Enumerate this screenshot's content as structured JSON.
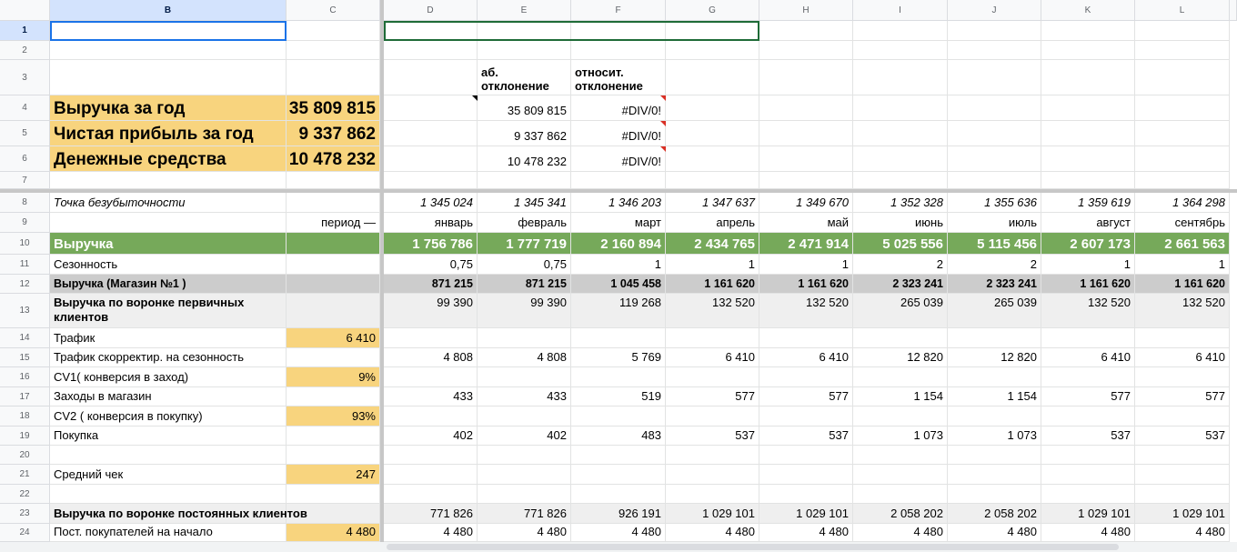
{
  "column_headers": [
    "B",
    "C",
    "D",
    "E",
    "F",
    "G",
    "H",
    "I",
    "J",
    "K",
    "L"
  ],
  "row_numbers": [
    1,
    2,
    3,
    4,
    5,
    6,
    7,
    8,
    9,
    10,
    11,
    12,
    13,
    14,
    15,
    16,
    17,
    18,
    19,
    20,
    21,
    22,
    23,
    24
  ],
  "cells": [
    [
      null,
      null,
      null,
      null,
      null,
      null,
      null,
      null,
      null,
      null,
      null
    ],
    [
      null,
      null,
      null,
      null,
      null,
      null,
      null,
      null,
      null,
      null,
      null
    ],
    [
      null,
      null,
      null,
      "аб.\nотклонение",
      "относит.\nотклонение",
      null,
      null,
      null,
      null,
      null,
      null
    ],
    [
      "Выручка за год",
      "35 809 815",
      null,
      "35 809 815",
      "#DIV/0!",
      null,
      null,
      null,
      null,
      null,
      null
    ],
    [
      "Чистая прибыль за год",
      "9 337 862",
      null,
      "9 337 862",
      "#DIV/0!",
      null,
      null,
      null,
      null,
      null,
      null
    ],
    [
      "Денежные средства",
      "10 478 232",
      null,
      "10 478 232",
      "#DIV/0!",
      null,
      null,
      null,
      null,
      null,
      null
    ],
    [
      null,
      null,
      null,
      null,
      null,
      null,
      null,
      null,
      null,
      null,
      null
    ],
    [
      "Точка безубыточности",
      null,
      "1 345 024",
      "1 345 341",
      "1 346 203",
      "1 347 637",
      "1 349 670",
      "1 352 328",
      "1 355 636",
      "1 359 619",
      "1 364 298"
    ],
    [
      null,
      "период —",
      "январь",
      "февраль",
      "март",
      "апрель",
      "май",
      "июнь",
      "июль",
      "август",
      "сентябрь"
    ],
    [
      "Выручка",
      null,
      "1 756 786",
      "1 777 719",
      "2 160 894",
      "2 434 765",
      "2 471 914",
      "5 025 556",
      "5 115 456",
      "2 607 173",
      "2 661 563"
    ],
    [
      "Сезонность",
      null,
      "0,75",
      "0,75",
      "1",
      "1",
      "1",
      "2",
      "2",
      "1",
      "1"
    ],
    [
      "Выручка (Магазин №1 )",
      null,
      "871 215",
      "871 215",
      "1 045 458",
      "1 161 620",
      "1 161 620",
      "2 323 241",
      "2 323 241",
      "1 161 620",
      "1 161 620"
    ],
    [
      "Выручка по воронке первичных клиентов",
      null,
      "99 390",
      "99 390",
      "119 268",
      "132 520",
      "132 520",
      "265 039",
      "265 039",
      "132 520",
      "132 520"
    ],
    [
      "Трафик",
      "6 410",
      null,
      null,
      null,
      null,
      null,
      null,
      null,
      null,
      null
    ],
    [
      "Трафик скорректир. на сезонность",
      null,
      "4 808",
      "4 808",
      "5 769",
      "6 410",
      "6 410",
      "12 820",
      "12 820",
      "6 410",
      "6 410"
    ],
    [
      "CV1( конверсия в заход)",
      "9%",
      null,
      null,
      null,
      null,
      null,
      null,
      null,
      null,
      null
    ],
    [
      "Заходы в магазин",
      null,
      "433",
      "433",
      "519",
      "577",
      "577",
      "1 154",
      "1 154",
      "577",
      "577"
    ],
    [
      "CV2 ( конверсия в покупку)",
      "93%",
      null,
      null,
      null,
      null,
      null,
      null,
      null,
      null,
      null
    ],
    [
      "Покупка",
      null,
      "402",
      "402",
      "483",
      "537",
      "537",
      "1 073",
      "1 073",
      "537",
      "537"
    ],
    [
      null,
      null,
      null,
      null,
      null,
      null,
      null,
      null,
      null,
      null,
      null
    ],
    [
      "Средний чек",
      "247",
      null,
      null,
      null,
      null,
      null,
      null,
      null,
      null,
      null
    ],
    [
      null,
      null,
      null,
      null,
      null,
      null,
      null,
      null,
      null,
      null,
      null
    ],
    [
      "Выручка по воронке постоянных клиентов",
      null,
      "771 826",
      "771 826",
      "926 191",
      "1 029 101",
      "1 029 101",
      "2 058 202",
      "2 058 202",
      "1 029 101",
      "1 029 101"
    ],
    [
      "Пост. покупателей  на начало",
      "4 480",
      "4 480",
      "4 480",
      "4 480",
      "4 480",
      "4 480",
      "4 480",
      "4 480",
      "4 480",
      "4 480"
    ]
  ]
}
